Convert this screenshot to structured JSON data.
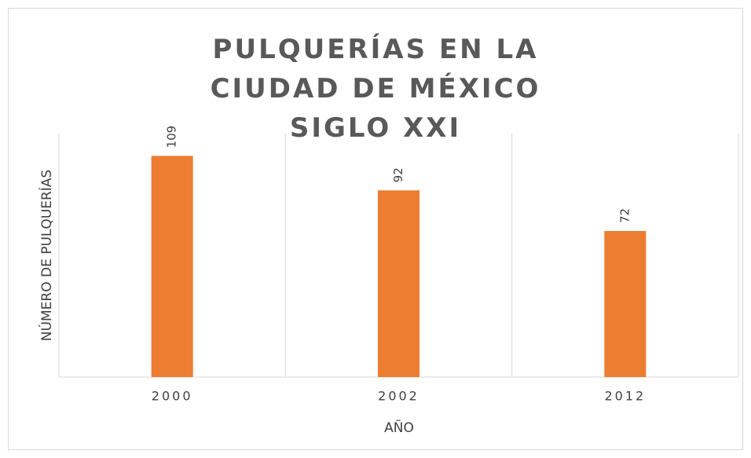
{
  "chart_data": {
    "type": "bar",
    "title": "PULQUERÍAS EN LA CIUDAD DE MÉXICO SIGLO XXI",
    "x_label": "AÑO",
    "y_label": "NÚMERO DE PULQUERÍAS",
    "categories": [
      "2000",
      "2002",
      "2012"
    ],
    "values": [
      109,
      92,
      72
    ],
    "color": "#ed7d31",
    "ylim": [
      0,
      120
    ],
    "data_labels": true
  }
}
